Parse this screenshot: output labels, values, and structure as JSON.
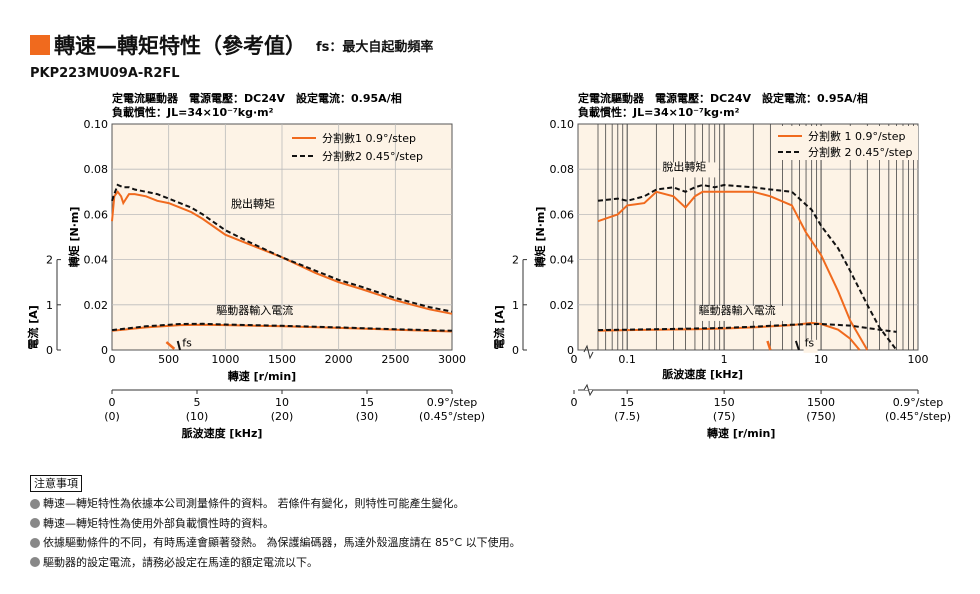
{
  "header": {
    "title": "轉速—轉矩特性（參考值）",
    "subtitle": "fs：最大自起動頻率",
    "model": "PKP223MU09A-R2FL",
    "accent": "#f06a1e"
  },
  "colors": {
    "series1": "#f06a1e",
    "series2": "#111111",
    "plot_bg": "#fdf3e6"
  },
  "chart_data": [
    {
      "type": "line",
      "info_line1": "定電流驅動器　電源電壓：DC24V　設定電流：0.95A/相",
      "info_line2": "負載慣性：JL=34×10⁻⁷kg·m²",
      "ylabel": "轉矩 [N·m]",
      "ylabel2": "電流 [A]",
      "xlabel": "轉速 [r/min]",
      "xlabel2": "脈波速度 [kHz]",
      "xlim": [
        0,
        3000
      ],
      "ylim": [
        0,
        0.1
      ],
      "yticks": [
        "0",
        "0.02",
        "0.04",
        "0.06",
        "0.08",
        "0.10"
      ],
      "xticks": [
        "0",
        "500",
        "1000",
        "1500",
        "2000",
        "2500",
        "3000"
      ],
      "xticks2_top": [
        "0",
        "5",
        "10",
        "15",
        "0.9°/step"
      ],
      "xticks2_bot": [
        "(0)",
        "(10)",
        "(20)",
        "(30)",
        "(0.45°/step)"
      ],
      "current_yticks": [
        "0",
        "1",
        "2"
      ],
      "grid": true,
      "legend_position": "top-right",
      "annotations": {
        "pullout": "脫出轉矩",
        "current": "驅動器輸入電流",
        "fs": "fs"
      },
      "series": [
        {
          "name": "分割數1  0.9°/step",
          "style": "solid",
          "x": [
            0,
            20,
            50,
            80,
            100,
            150,
            200,
            300,
            400,
            500,
            600,
            700,
            800,
            1000,
            1200,
            1500,
            1800,
            2000,
            2200,
            2500,
            2800,
            3000
          ],
          "y": [
            0.057,
            0.068,
            0.07,
            0.068,
            0.065,
            0.069,
            0.069,
            0.068,
            0.066,
            0.065,
            0.063,
            0.061,
            0.058,
            0.051,
            0.047,
            0.041,
            0.034,
            0.03,
            0.027,
            0.022,
            0.018,
            0.016
          ]
        },
        {
          "name": "分割數2  0.45°/step",
          "style": "dashed",
          "x": [
            0,
            20,
            50,
            100,
            150,
            200,
            300,
            400,
            500,
            600,
            700,
            800,
            1000,
            1200,
            1500,
            1800,
            2000,
            2200,
            2500,
            2800,
            3000
          ],
          "y": [
            0.066,
            0.069,
            0.073,
            0.072,
            0.072,
            0.071,
            0.07,
            0.069,
            0.067,
            0.065,
            0.063,
            0.06,
            0.053,
            0.048,
            0.041,
            0.035,
            0.031,
            0.028,
            0.023,
            0.019,
            0.017
          ]
        },
        {
          "name": "驅動器輸入電流 1",
          "style": "solid",
          "x": [
            0,
            300,
            600,
            800,
            1000,
            1500,
            2000,
            2500,
            3000
          ],
          "y": [
            0.0085,
            0.01,
            0.011,
            0.0112,
            0.011,
            0.0105,
            0.0098,
            0.009,
            0.0082
          ]
        },
        {
          "name": "驅動器輸入電流 2",
          "style": "dashed",
          "x": [
            0,
            300,
            600,
            800,
            1000,
            1500,
            2000,
            2500,
            3000
          ],
          "y": [
            0.0088,
            0.0105,
            0.0115,
            0.0116,
            0.0113,
            0.0107,
            0.01,
            0.0092,
            0.0085
          ]
        }
      ],
      "fs_value": 0.5
    },
    {
      "type": "line",
      "log_x": true,
      "info_line1": "定電流驅動器　電源電壓：DC24V　設定電流：0.95A/相",
      "info_line2": "負載慣性：JL=34×10⁻⁷kg·m²",
      "ylabel": "轉矩 [N·m]",
      "ylabel2": "電流 [A]",
      "xlabel": "脈波速度 [kHz]",
      "xlabel2": "轉速 [r/min]",
      "xlim": [
        0.05,
        100
      ],
      "ylim": [
        0,
        0.1
      ],
      "yticks": [
        "0",
        "0.02",
        "0.04",
        "0.06",
        "0.08",
        "0.10"
      ],
      "xticks": [
        "0.1",
        "1",
        "10",
        "100"
      ],
      "xtick_zero": "0",
      "xticks2_top": [
        "0",
        "15",
        "150",
        "1500",
        "0.9°/step"
      ],
      "xticks2_bot": [
        "(7.5)",
        "(75)",
        "(750)",
        "(0.45°/step)"
      ],
      "current_yticks": [
        "0",
        "1",
        "2"
      ],
      "grid": true,
      "legend_position": "top-right",
      "annotations": {
        "pullout": "脫出轉矩",
        "current": "驅動器輸入電流",
        "fs": "fs"
      },
      "series": [
        {
          "name": "分割數 1  0.9°/step",
          "style": "solid",
          "x": [
            0.05,
            0.08,
            0.1,
            0.15,
            0.2,
            0.3,
            0.4,
            0.5,
            0.6,
            0.7,
            1,
            2,
            3,
            5,
            7,
            10,
            15,
            20,
            30
          ],
          "y": [
            0.057,
            0.06,
            0.064,
            0.065,
            0.07,
            0.068,
            0.063,
            0.068,
            0.07,
            0.07,
            0.07,
            0.07,
            0.068,
            0.064,
            0.052,
            0.042,
            0.026,
            0.013,
            0.0
          ]
        },
        {
          "name": "分割數 2  0.45°/step",
          "style": "dashed",
          "x": [
            0.05,
            0.08,
            0.1,
            0.15,
            0.2,
            0.3,
            0.4,
            0.5,
            0.6,
            0.8,
            1,
            2,
            3,
            5,
            8,
            10,
            15,
            20,
            30,
            40,
            60
          ],
          "y": [
            0.066,
            0.067,
            0.066,
            0.068,
            0.071,
            0.072,
            0.07,
            0.072,
            0.073,
            0.072,
            0.073,
            0.072,
            0.071,
            0.07,
            0.062,
            0.055,
            0.045,
            0.035,
            0.02,
            0.01,
            0.0
          ]
        },
        {
          "name": "驅動器輸入電流 1",
          "style": "solid",
          "x": [
            0.05,
            0.1,
            0.5,
            1,
            2,
            5,
            8,
            10,
            15,
            20,
            25
          ],
          "y": [
            0.0085,
            0.0088,
            0.0092,
            0.0095,
            0.01,
            0.011,
            0.012,
            0.0115,
            0.009,
            0.005,
            0.0
          ]
        },
        {
          "name": "驅動器輸入電流 2",
          "style": "dashed",
          "x": [
            0.05,
            0.1,
            0.5,
            1,
            2,
            5,
            10,
            20,
            40,
            60
          ],
          "y": [
            0.0088,
            0.009,
            0.0095,
            0.0098,
            0.0103,
            0.0112,
            0.0115,
            0.0108,
            0.009,
            0.008
          ]
        }
      ],
      "fs_value": 5
    }
  ],
  "notes": {
    "heading": "注意事項",
    "items": [
      "轉速—轉矩特性為依據本公司測量條件的資料。 若條件有變化，則特性可能產生變化。",
      "轉速—轉矩特性為使用外部負載慣性時的資料。",
      "依據驅動條件的不同，有時馬達會顯著發熱。 為保護編碼器，馬達外殼溫度請在 85°C 以下使用。",
      "驅動器的設定電流，請務必設定在馬達的額定電流以下。"
    ]
  }
}
